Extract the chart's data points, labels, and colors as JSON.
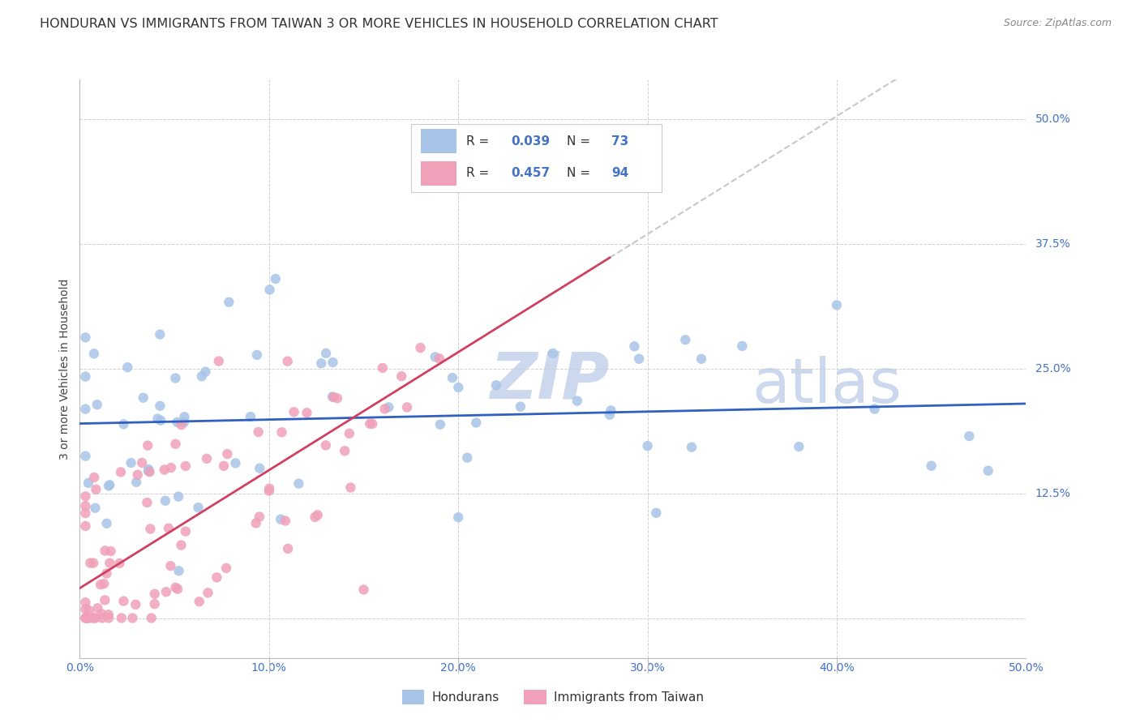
{
  "title": "HONDURAN VS IMMIGRANTS FROM TAIWAN 3 OR MORE VEHICLES IN HOUSEHOLD CORRELATION CHART",
  "source": "Source: ZipAtlas.com",
  "ylabel_label": "3 or more Vehicles in Household",
  "xlim": [
    0,
    0.5
  ],
  "ylim": [
    -0.04,
    0.54
  ],
  "legend_labels": [
    "Hondurans",
    "Immigrants from Taiwan"
  ],
  "r_blue": 0.039,
  "n_blue": 73,
  "r_pink": 0.457,
  "n_pink": 94,
  "blue_color": "#a8c4e8",
  "pink_color": "#f0a0b8",
  "line_blue_color": "#3060c0",
  "line_pink_color": "#d04060",
  "line_dash_color": "#c8c8c8",
  "watermark_zip": "ZIP",
  "watermark_atlas": "atlas",
  "watermark_color": "#ccd8ee",
  "background_color": "#ffffff",
  "grid_color": "#cccccc",
  "title_color": "#333333",
  "title_fontsize": 11.5,
  "axis_tick_color": "#4472c4",
  "source_color": "#888888",
  "ylabel_color": "#444444",
  "legend_box_color": "#eeeeee",
  "blue_line_start_y": 0.195,
  "blue_line_end_y": 0.215,
  "pink_line_start_y": 0.03,
  "pink_line_end_y": 0.385
}
